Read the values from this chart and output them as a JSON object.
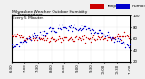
{
  "title": "Milwaukee Weather Outdoor Humidity\nvs Temperature\nEvery 5 Minutes",
  "red_label": "Temp",
  "blue_label": "Humidity",
  "background_color": "#f0f0f0",
  "plot_bg": "#ffffff",
  "red_color": "#cc0000",
  "blue_color": "#0000cc",
  "legend_red_bg": "#cc0000",
  "legend_blue_bg": "#0000cc",
  "ylim_left": [
    20,
    100
  ],
  "ylim_right": [
    20,
    100
  ],
  "marker_size": 1.0,
  "title_fontsize": 3.5,
  "tick_fontsize": 2.8,
  "n_points": 120,
  "red_seed": 42,
  "blue_seed": 7
}
